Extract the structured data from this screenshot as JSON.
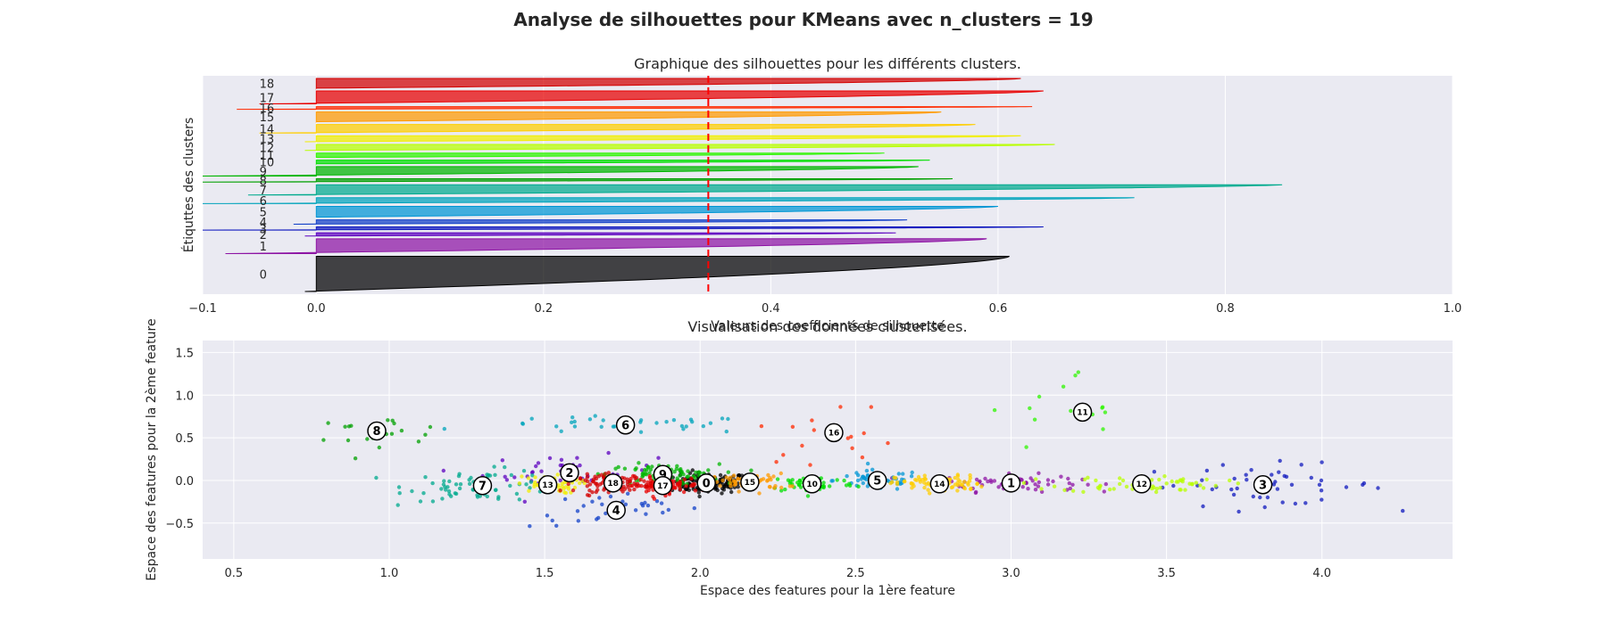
{
  "suptitle": "Analyse de silhouettes pour KMeans avec n_clusters = 19",
  "colors": {
    "background": "#eaeaf2",
    "grid": "#ffffff",
    "average_line": "#ff0000",
    "clusters": [
      "#000000",
      "#8d14a4",
      "#5c00bf",
      "#0f18be",
      "#1240c8",
      "#0096d4",
      "#00a4bb",
      "#00aa8d",
      "#00a000",
      "#00b500",
      "#00df00",
      "#2ef500",
      "#b8ff00",
      "#f1ee00",
      "#ffce00",
      "#ff9a00",
      "#ff2a00",
      "#e80000",
      "#d30000"
    ]
  },
  "chart_data": [
    {
      "type": "area",
      "title": "Graphique des silhouettes pour les différents clusters.",
      "xlabel": "Valeurs des coefficients de silhouette",
      "ylabel": "Étiquttes des clusters",
      "xlim": [
        -0.1,
        1.0
      ],
      "xticks": [
        "−0.1",
        "0.0",
        "0.2",
        "0.4",
        "0.6",
        "0.8",
        "1.0"
      ],
      "xtick_values": [
        -0.1,
        0.0,
        0.2,
        0.4,
        0.6,
        0.8,
        1.0
      ],
      "silhouette_average": 0.345,
      "grid": true,
      "clusters": [
        {
          "label": "0",
          "size": 130,
          "min": -0.01,
          "max": 0.61
        },
        {
          "label": "1",
          "size": 55,
          "min": -0.08,
          "max": 0.59
        },
        {
          "label": "2",
          "size": 12,
          "min": -0.01,
          "max": 0.51
        },
        {
          "label": "3",
          "size": 12,
          "min": -0.1,
          "max": 0.64
        },
        {
          "label": "4",
          "size": 16,
          "min": -0.02,
          "max": 0.52
        },
        {
          "label": "5",
          "size": 40,
          "min": 0.0,
          "max": 0.6
        },
        {
          "label": "6",
          "size": 22,
          "min": -0.1,
          "max": 0.72
        },
        {
          "label": "7",
          "size": 38,
          "min": -0.06,
          "max": 0.85
        },
        {
          "label": "8",
          "size": 12,
          "min": -0.1,
          "max": 0.56
        },
        {
          "label": "9",
          "size": 35,
          "min": -0.1,
          "max": 0.53
        },
        {
          "label": "10",
          "size": 14,
          "min": 0.0,
          "max": 0.54
        },
        {
          "label": "11",
          "size": 16,
          "min": 0.0,
          "max": 0.5
        },
        {
          "label": "12",
          "size": 22,
          "min": -0.01,
          "max": 0.65
        },
        {
          "label": "13",
          "size": 22,
          "min": -0.01,
          "max": 0.62
        },
        {
          "label": "14",
          "size": 32,
          "min": -0.05,
          "max": 0.58
        },
        {
          "label": "15",
          "size": 36,
          "min": 0.0,
          "max": 0.55
        },
        {
          "label": "16",
          "size": 10,
          "min": -0.07,
          "max": 0.63
        },
        {
          "label": "17",
          "size": 48,
          "min": -0.05,
          "max": 0.64
        },
        {
          "label": "18",
          "size": 36,
          "min": 0.0,
          "max": 0.62
        }
      ]
    },
    {
      "type": "scatter",
      "title": "Visualisation des données clusterisées.",
      "xlabel": "Espace des features pour la 1ère feature",
      "ylabel": "Espace des features pour la 2ème feature",
      "xlim": [
        0.4,
        4.42
      ],
      "ylim": [
        -0.92,
        1.64
      ],
      "xticks": [
        "0.5",
        "1.0",
        "1.5",
        "2.0",
        "2.5",
        "3.0",
        "3.5",
        "4.0"
      ],
      "xtick_values": [
        0.5,
        1.0,
        1.5,
        2.0,
        2.5,
        3.0,
        3.5,
        4.0
      ],
      "yticks": [
        "−0.5",
        "0.0",
        "0.5",
        "1.0",
        "1.5"
      ],
      "ytick_values": [
        -0.5,
        0.0,
        0.5,
        1.0,
        1.5
      ],
      "grid": true,
      "clusters": [
        {
          "label": "0",
          "center": [
            2.02,
            -0.03
          ],
          "spread": [
            0.07,
            0.06
          ],
          "count": 150
        },
        {
          "label": "1",
          "center": [
            3.0,
            -0.03
          ],
          "spread": [
            0.11,
            0.05
          ],
          "count": 75
        },
        {
          "label": "2",
          "center": [
            1.58,
            0.09
          ],
          "spread": [
            0.14,
            0.1
          ],
          "count": 40
        },
        {
          "label": "3",
          "center": [
            3.81,
            -0.05
          ],
          "spread": [
            0.2,
            0.12
          ],
          "count": 50
        },
        {
          "label": "4",
          "center": [
            1.73,
            -0.35
          ],
          "spread": [
            0.14,
            0.1
          ],
          "count": 30
        },
        {
          "label": "5",
          "center": [
            2.57,
            0.0
          ],
          "spread": [
            0.07,
            0.06
          ],
          "count": 55
        },
        {
          "label": "6",
          "center": [
            1.76,
            0.65
          ],
          "spread": [
            0.22,
            0.05
          ],
          "count": 35
        },
        {
          "label": "7",
          "center": [
            1.3,
            -0.06
          ],
          "spread": [
            0.12,
            0.09
          ],
          "count": 70
        },
        {
          "label": "8",
          "center": [
            0.96,
            0.58
          ],
          "spread": [
            0.12,
            0.08
          ],
          "count": 20
        },
        {
          "label": "9",
          "center": [
            1.88,
            0.07
          ],
          "spread": [
            0.09,
            0.06
          ],
          "count": 80
        },
        {
          "label": "10",
          "center": [
            2.36,
            -0.04
          ],
          "spread": [
            0.07,
            0.05
          ],
          "count": 60
        },
        {
          "label": "11",
          "center": [
            3.23,
            0.8
          ],
          "spread": [
            0.15,
            0.25
          ],
          "count": 14
        },
        {
          "label": "12",
          "center": [
            3.42,
            -0.04
          ],
          "spread": [
            0.13,
            0.05
          ],
          "count": 65
        },
        {
          "label": "13",
          "center": [
            1.51,
            -0.05
          ],
          "spread": [
            0.05,
            0.05
          ],
          "count": 60
        },
        {
          "label": "14",
          "center": [
            2.77,
            -0.04
          ],
          "spread": [
            0.07,
            0.05
          ],
          "count": 80
        },
        {
          "label": "15",
          "center": [
            2.16,
            -0.02
          ],
          "spread": [
            0.06,
            0.05
          ],
          "count": 60
        },
        {
          "label": "16",
          "center": [
            2.43,
            0.56
          ],
          "spread": [
            0.12,
            0.18
          ],
          "count": 16
        },
        {
          "label": "17",
          "center": [
            1.88,
            -0.06
          ],
          "spread": [
            0.06,
            0.05
          ],
          "count": 90
        },
        {
          "label": "18",
          "center": [
            1.72,
            -0.03
          ],
          "spread": [
            0.06,
            0.05
          ],
          "count": 100
        }
      ]
    }
  ]
}
